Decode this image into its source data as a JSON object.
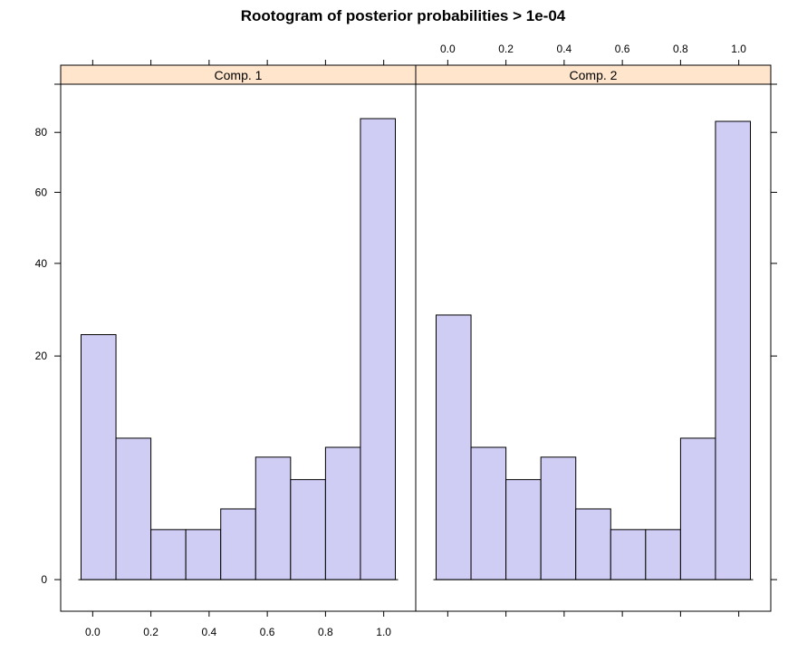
{
  "chart_data": {
    "type": "bar",
    "title": "Rootogram of posterior probabilities > 1e-04",
    "scale": "sqrt",
    "ylim": [
      0,
      92
    ],
    "xlim": [
      -0.11,
      1.11
    ],
    "x_ticks": [
      0.0,
      0.2,
      0.4,
      0.6,
      0.8,
      1.0
    ],
    "x_tick_labels": [
      "0.0",
      "0.2",
      "0.4",
      "0.6",
      "0.8",
      "1.0"
    ],
    "y_ticks": [
      0,
      20,
      40,
      60,
      80
    ],
    "y_tick_labels": [
      "0",
      "20",
      "40",
      "60",
      "80"
    ],
    "bin_edges": [
      -0.04,
      0.08,
      0.2,
      0.32,
      0.44,
      0.56,
      0.68,
      0.8,
      0.92,
      1.04
    ],
    "panels": [
      {
        "name": "Comp. 1",
        "counts": [
          24,
          8,
          1,
          1,
          2,
          6,
          4,
          7,
          85
        ]
      },
      {
        "name": "Comp. 2",
        "counts": [
          28,
          7,
          4,
          6,
          2,
          1,
          1,
          8,
          84
        ]
      }
    ],
    "grid": false,
    "legend": "none"
  }
}
